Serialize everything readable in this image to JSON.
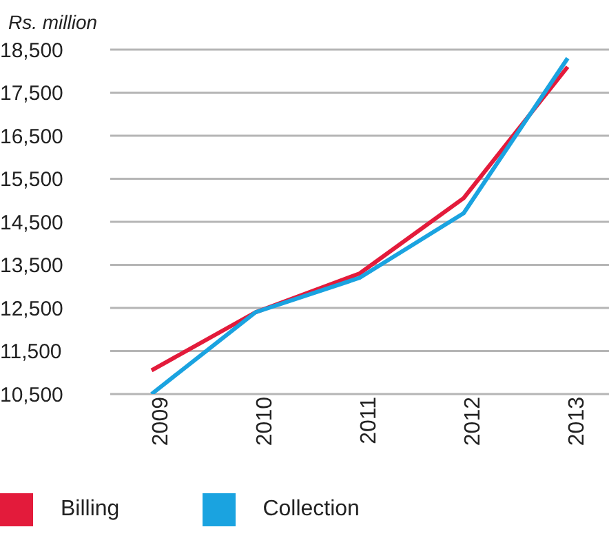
{
  "chart_data": {
    "type": "line",
    "ylabel": "Rs. million",
    "categories": [
      "2009",
      "2010",
      "2011",
      "2012",
      "2013"
    ],
    "series": [
      {
        "name": "Billing",
        "color": "#e31b3b",
        "values": [
          11050,
          12400,
          13300,
          15050,
          18100
        ]
      },
      {
        "name": "Collection",
        "color": "#1aa3e0",
        "values": [
          10500,
          12400,
          13200,
          14700,
          18300
        ]
      }
    ],
    "ylim": [
      10500,
      18500
    ],
    "yticks": [
      {
        "value": 10500,
        "label": "10,500"
      },
      {
        "value": 11500,
        "label": "11,500"
      },
      {
        "value": 12500,
        "label": "12,500"
      },
      {
        "value": 13500,
        "label": "13,500"
      },
      {
        "value": 14500,
        "label": "14,500"
      },
      {
        "value": 15500,
        "label": "15,500"
      },
      {
        "value": 16500,
        "label": "16,500"
      },
      {
        "value": 17500,
        "label": "17,500"
      },
      {
        "value": 18500,
        "label": "18,500"
      }
    ],
    "grid": "y",
    "legend": "bottom",
    "marker": "none",
    "line_style": "solid"
  }
}
